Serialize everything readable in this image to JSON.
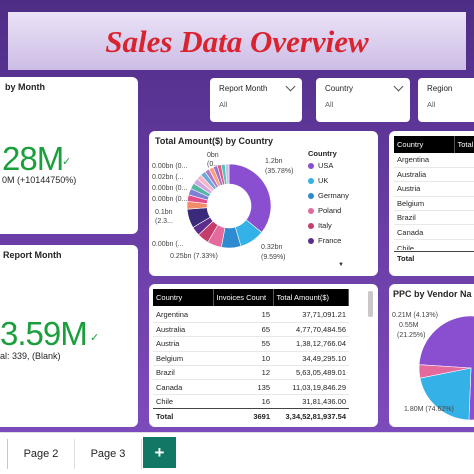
{
  "report": {
    "title": "Sales Data Overview"
  },
  "kpi_month": {
    "title": "by Month",
    "value": "28M",
    "subtitle": "0M (+10144750%)"
  },
  "kpi_report_month": {
    "title": "Report Month",
    "value": "3.59M",
    "subtitle": "al: 339, (Blank)"
  },
  "slicers": [
    {
      "label": "Report Month",
      "value": "All"
    },
    {
      "label": "Country",
      "value": "All"
    },
    {
      "label": "Region",
      "value": "All"
    }
  ],
  "donut": {
    "title": "Total Amount($) by Country",
    "legend_title": "Country",
    "legend": [
      {
        "name": "USA",
        "color": "#8a4fd0"
      },
      {
        "name": "UK",
        "color": "#34b1e6"
      },
      {
        "name": "Germany",
        "color": "#2e8bd1"
      },
      {
        "name": "Poland",
        "color": "#e46a9e"
      },
      {
        "name": "Italy",
        "color": "#c53d6a"
      },
      {
        "name": "France",
        "color": "#5b2d8c"
      }
    ],
    "labels_left": [
      "0.00bn (0...",
      "0.02bn (...",
      "0.00bn (0...",
      "0.00bn (0...",
      "0.1bn",
      "(2.3...",
      "0.00bn (...",
      "0.25bn (7.33%)"
    ],
    "labels_top": [
      "0bn",
      "(0..."
    ],
    "labels_right": [
      "1.2bn",
      "(35.78%)",
      "0.32bn",
      "(9.59%)"
    ]
  },
  "small_table": {
    "columns": [
      "Country",
      "Total"
    ],
    "rows": [
      "Argentina",
      "Australia",
      "Austria",
      "Belgium",
      "Brazil",
      "Canada",
      "Chile"
    ],
    "total_label": "Total"
  },
  "main_table": {
    "columns": [
      "Country",
      "Invoices Count",
      "Total Amount($)"
    ],
    "rows": [
      {
        "country": "Argentina",
        "count": "15",
        "amount": "37,71,091.21"
      },
      {
        "country": "Australia",
        "count": "65",
        "amount": "4,77,70,484.56"
      },
      {
        "country": "Austria",
        "count": "55",
        "amount": "1,38,12,766.04"
      },
      {
        "country": "Belgium",
        "count": "10",
        "amount": "34,49,295.10"
      },
      {
        "country": "Brazil",
        "count": "12",
        "amount": "5,63,05,489.01"
      },
      {
        "country": "Canada",
        "count": "135",
        "amount": "11,03,19,846.29"
      },
      {
        "country": "Chile",
        "count": "16",
        "amount": "31,81,436.00"
      }
    ],
    "total": {
      "label": "Total",
      "count": "3691",
      "amount": "3,34,52,81,937.54"
    }
  },
  "pie": {
    "title": "PPC by Vendor Na",
    "labels": [
      "0.21M (4.13%)",
      "0.55M",
      "(21.25%)",
      "1.80M (74.62%)"
    ]
  },
  "pages": {
    "tab2": "Page 2",
    "tab3": "Page 3",
    "add": "+"
  }
}
